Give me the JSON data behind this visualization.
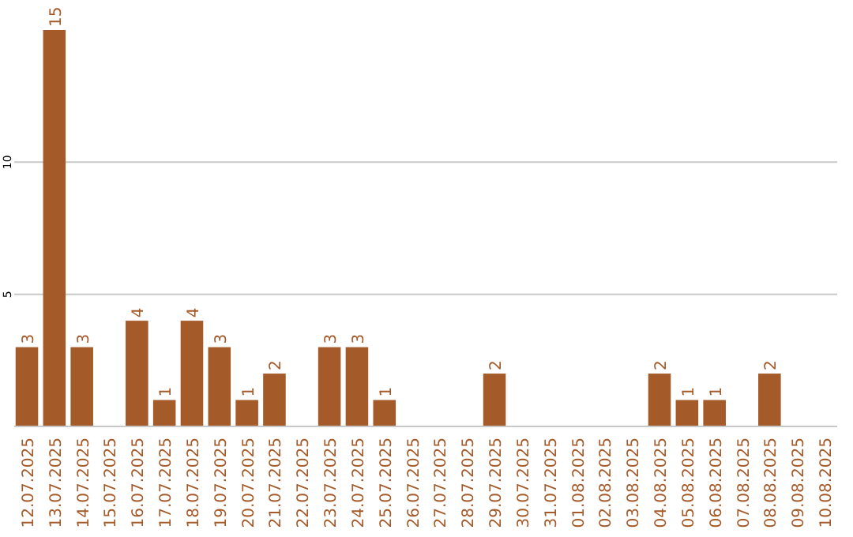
{
  "chart_data": {
    "type": "bar",
    "categories": [
      "12.07.2025",
      "13.07.2025",
      "14.07.2025",
      "15.07.2025",
      "16.07.2025",
      "17.07.2025",
      "18.07.2025",
      "19.07.2025",
      "20.07.2025",
      "21.07.2025",
      "22.07.2025",
      "23.07.2025",
      "24.07.2025",
      "25.07.2025",
      "26.07.2025",
      "27.07.2025",
      "28.07.2025",
      "29.07.2025",
      "30.07.2025",
      "31.07.2025",
      "01.08.2025",
      "02.08.2025",
      "03.08.2025",
      "04.08.2025",
      "05.08.2025",
      "06.08.2025",
      "07.08.2025",
      "08.08.2025",
      "09.08.2025",
      "10.08.2025"
    ],
    "values": [
      3,
      15,
      3,
      0,
      4,
      1,
      4,
      3,
      1,
      2,
      0,
      3,
      3,
      1,
      0,
      0,
      0,
      2,
      0,
      0,
      0,
      0,
      0,
      2,
      1,
      1,
      0,
      2,
      0,
      0
    ],
    "value_labels": [
      "3",
      "15",
      "3",
      null,
      "4",
      "1",
      "4",
      "3",
      "1",
      "2",
      null,
      "3",
      "3",
      "1",
      null,
      null,
      null,
      "2",
      null,
      null,
      null,
      null,
      null,
      "2",
      "1",
      "1",
      null,
      "2",
      null,
      null
    ],
    "color": "#a55a2a",
    "ylim": [
      0,
      15
    ],
    "yticks": [
      5,
      10
    ],
    "grid": "y"
  }
}
